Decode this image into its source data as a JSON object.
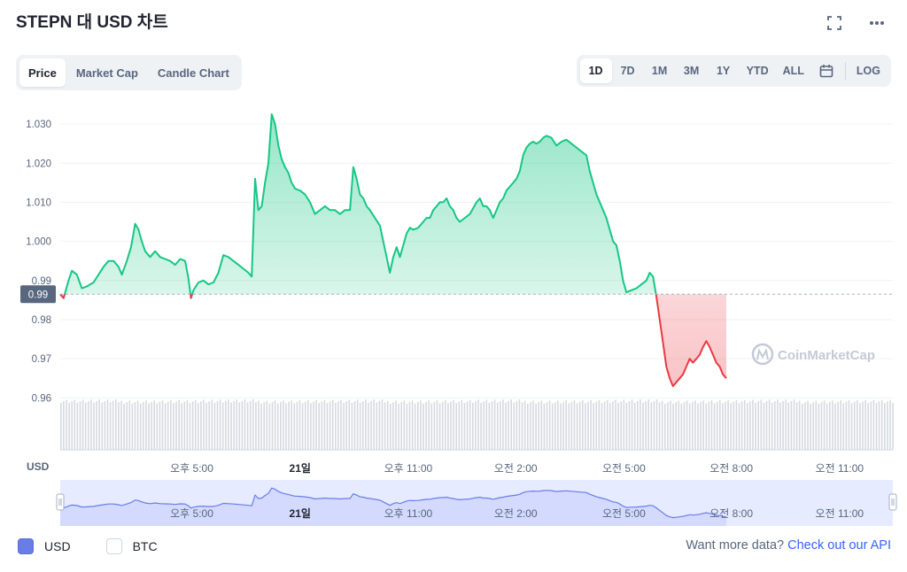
{
  "header": {
    "title": "STEPN 대 USD 차트",
    "fullscreen_icon": "expand-icon",
    "more_icon": "more-dots-icon"
  },
  "tabs": [
    {
      "label": "Price",
      "active": true
    },
    {
      "label": "Market Cap",
      "active": false
    },
    {
      "label": "Candle Chart",
      "active": false
    }
  ],
  "ranges": [
    {
      "label": "1D",
      "active": true
    },
    {
      "label": "7D",
      "active": false
    },
    {
      "label": "1M",
      "active": false
    },
    {
      "label": "3M",
      "active": false
    },
    {
      "label": "1Y",
      "active": false
    },
    {
      "label": "YTD",
      "active": false
    },
    {
      "label": "ALL",
      "active": false
    }
  ],
  "calendar_icon": "calendar-icon",
  "log_label": "LOG",
  "legend": {
    "usd": "USD",
    "btc": "BTC",
    "usd_checked": true,
    "btc_checked": false
  },
  "footer": {
    "text": "Want more data?",
    "link": "Check out our API"
  },
  "watermark": "CoinMarketCap",
  "colors": {
    "up": "#16c784",
    "down": "#ea3943",
    "accent": "#3861fb",
    "navigator": "#6a7ce8"
  },
  "chart_data": {
    "type": "area",
    "ylabel": "USD",
    "ylim": [
      0.956,
      1.035
    ],
    "yticks": [
      0.96,
      0.97,
      0.98,
      0.99,
      1.0,
      1.01,
      1.02,
      1.03
    ],
    "ytick_labels": [
      "0.96",
      "0.97",
      "0.98",
      "0.99",
      "1.000",
      "1.010",
      "1.020",
      "1.030"
    ],
    "baseline": 0.9865,
    "baseline_label": "0.99",
    "x_ticks": [
      {
        "t": 0.158,
        "label": "오후 5:00",
        "bold": false
      },
      {
        "t": 0.288,
        "label": "21일",
        "bold": true
      },
      {
        "t": 0.418,
        "label": "오후 11:00",
        "bold": false
      },
      {
        "t": 0.547,
        "label": "오전 2:00",
        "bold": false
      },
      {
        "t": 0.677,
        "label": "오전 5:00",
        "bold": false
      },
      {
        "t": 0.806,
        "label": "오전 8:00",
        "bold": false
      },
      {
        "t": 0.936,
        "label": "오전 11:00",
        "bold": false
      }
    ],
    "series": [
      {
        "points": [
          [
            0.0,
            0.9865
          ],
          [
            0.004,
            0.9855
          ],
          [
            0.01,
            0.99
          ],
          [
            0.014,
            0.9925
          ],
          [
            0.02,
            0.9915
          ],
          [
            0.026,
            0.988
          ],
          [
            0.032,
            0.9885
          ],
          [
            0.04,
            0.9895
          ],
          [
            0.046,
            0.9915
          ],
          [
            0.052,
            0.9935
          ],
          [
            0.058,
            0.995
          ],
          [
            0.064,
            0.995
          ],
          [
            0.07,
            0.9935
          ],
          [
            0.074,
            0.9915
          ],
          [
            0.08,
            0.995
          ],
          [
            0.085,
            0.9985
          ],
          [
            0.09,
            1.0045
          ],
          [
            0.094,
            1.003
          ],
          [
            0.098,
            1.0
          ],
          [
            0.102,
            0.9975
          ],
          [
            0.108,
            0.996
          ],
          [
            0.114,
            0.9975
          ],
          [
            0.12,
            0.996
          ],
          [
            0.126,
            0.9955
          ],
          [
            0.132,
            0.995
          ],
          [
            0.138,
            0.994
          ],
          [
            0.144,
            0.9955
          ],
          [
            0.15,
            0.995
          ],
          [
            0.154,
            0.9905
          ],
          [
            0.157,
            0.9855
          ],
          [
            0.16,
            0.9875
          ],
          [
            0.166,
            0.9895
          ],
          [
            0.172,
            0.99
          ],
          [
            0.178,
            0.989
          ],
          [
            0.184,
            0.9895
          ],
          [
            0.19,
            0.992
          ],
          [
            0.196,
            0.9965
          ],
          [
            0.202,
            0.996
          ],
          [
            0.208,
            0.995
          ],
          [
            0.214,
            0.994
          ],
          [
            0.22,
            0.993
          ],
          [
            0.226,
            0.992
          ],
          [
            0.23,
            0.991
          ],
          [
            0.234,
            1.016
          ],
          [
            0.238,
            1.008
          ],
          [
            0.242,
            1.009
          ],
          [
            0.246,
            1.015
          ],
          [
            0.25,
            1.02
          ],
          [
            0.254,
            1.0325
          ],
          [
            0.258,
            1.03
          ],
          [
            0.262,
            1.0245
          ],
          [
            0.266,
            1.021
          ],
          [
            0.27,
            1.019
          ],
          [
            0.274,
            1.0175
          ],
          [
            0.278,
            1.015
          ],
          [
            0.282,
            1.0135
          ],
          [
            0.288,
            1.013
          ],
          [
            0.294,
            1.012
          ],
          [
            0.3,
            1.01
          ],
          [
            0.306,
            1.007
          ],
          [
            0.312,
            1.008
          ],
          [
            0.318,
            1.009
          ],
          [
            0.324,
            1.008
          ],
          [
            0.33,
            1.008
          ],
          [
            0.336,
            1.007
          ],
          [
            0.342,
            1.008
          ],
          [
            0.348,
            1.008
          ],
          [
            0.352,
            1.019
          ],
          [
            0.356,
            1.016
          ],
          [
            0.36,
            1.012
          ],
          [
            0.364,
            1.011
          ],
          [
            0.368,
            1.009
          ],
          [
            0.372,
            1.008
          ],
          [
            0.378,
            1.006
          ],
          [
            0.384,
            1.004
          ],
          [
            0.388,
            1.0
          ],
          [
            0.392,
            0.996
          ],
          [
            0.396,
            0.992
          ],
          [
            0.4,
            0.996
          ],
          [
            0.404,
            0.9985
          ],
          [
            0.408,
            0.996
          ],
          [
            0.412,
            0.999
          ],
          [
            0.416,
            1.002
          ],
          [
            0.42,
            1.0035
          ],
          [
            0.424,
            1.003
          ],
          [
            0.43,
            1.0035
          ],
          [
            0.436,
            1.005
          ],
          [
            0.44,
            1.006
          ],
          [
            0.444,
            1.006
          ],
          [
            0.448,
            1.008
          ],
          [
            0.452,
            1.009
          ],
          [
            0.456,
            1.01
          ],
          [
            0.46,
            1.01
          ],
          [
            0.464,
            1.011
          ],
          [
            0.468,
            1.009
          ],
          [
            0.472,
            1.008
          ],
          [
            0.476,
            1.006
          ],
          [
            0.48,
            1.005
          ],
          [
            0.486,
            1.006
          ],
          [
            0.492,
            1.007
          ],
          [
            0.496,
            1.0085
          ],
          [
            0.5,
            1.01
          ],
          [
            0.504,
            1.011
          ],
          [
            0.508,
            1.009
          ],
          [
            0.512,
            1.009
          ],
          [
            0.516,
            1.008
          ],
          [
            0.52,
            1.006
          ],
          [
            0.524,
            1.008
          ],
          [
            0.528,
            1.01
          ],
          [
            0.532,
            1.011
          ],
          [
            0.536,
            1.013
          ],
          [
            0.54,
            1.014
          ],
          [
            0.544,
            1.015
          ],
          [
            0.548,
            1.016
          ],
          [
            0.552,
            1.018
          ],
          [
            0.556,
            1.022
          ],
          [
            0.56,
            1.024
          ],
          [
            0.564,
            1.025
          ],
          [
            0.568,
            1.0255
          ],
          [
            0.572,
            1.025
          ],
          [
            0.576,
            1.0255
          ],
          [
            0.58,
            1.0265
          ],
          [
            0.584,
            1.027
          ],
          [
            0.59,
            1.0265
          ],
          [
            0.596,
            1.0245
          ],
          [
            0.602,
            1.0255
          ],
          [
            0.608,
            1.026
          ],
          [
            0.614,
            1.025
          ],
          [
            0.62,
            1.024
          ],
          [
            0.626,
            1.023
          ],
          [
            0.632,
            1.022
          ],
          [
            0.636,
            1.018
          ],
          [
            0.64,
            1.015
          ],
          [
            0.644,
            1.012
          ],
          [
            0.648,
            1.01
          ],
          [
            0.652,
            1.008
          ],
          [
            0.656,
            1.006
          ],
          [
            0.66,
            1.003
          ],
          [
            0.664,
            1.0
          ],
          [
            0.668,
            0.999
          ],
          [
            0.672,
            0.995
          ],
          [
            0.676,
            0.99
          ],
          [
            0.68,
            0.987
          ],
          [
            0.686,
            0.9875
          ],
          [
            0.692,
            0.988
          ],
          [
            0.698,
            0.989
          ],
          [
            0.704,
            0.99
          ],
          [
            0.708,
            0.992
          ],
          [
            0.712,
            0.991
          ],
          [
            0.716,
            0.986
          ],
          [
            0.72,
            0.98
          ],
          [
            0.724,
            0.974
          ],
          [
            0.728,
            0.968
          ],
          [
            0.732,
            0.965
          ],
          [
            0.736,
            0.963
          ],
          [
            0.74,
            0.964
          ],
          [
            0.744,
            0.965
          ],
          [
            0.748,
            0.966
          ],
          [
            0.752,
            0.968
          ],
          [
            0.756,
            0.97
          ],
          [
            0.76,
            0.969
          ],
          [
            0.764,
            0.97
          ],
          [
            0.768,
            0.971
          ],
          [
            0.772,
            0.973
          ],
          [
            0.776,
            0.9745
          ],
          [
            0.78,
            0.973
          ],
          [
            0.784,
            0.971
          ],
          [
            0.788,
            0.969
          ],
          [
            0.792,
            0.968
          ],
          [
            0.796,
            0.966
          ],
          [
            0.8,
            0.965
          ]
        ]
      }
    ]
  }
}
